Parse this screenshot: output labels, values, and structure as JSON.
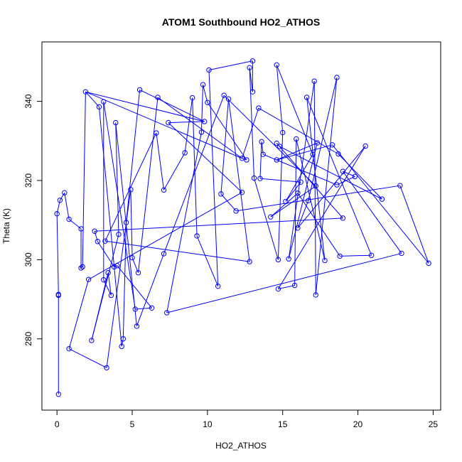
{
  "chart_data": {
    "type": "line",
    "title": "ATOM1 Southbound HO2_ATHOS",
    "xlabel": "HO2_ATHOS",
    "ylabel": "Theta (K)",
    "xlim": [
      -1,
      25.5
    ],
    "ylim": [
      262,
      355
    ],
    "xticks": [
      0,
      5,
      10,
      15,
      20,
      25
    ],
    "yticks": [
      280,
      300,
      320,
      340
    ],
    "grid": false,
    "legend": "none",
    "series_color": "#0000ff",
    "points": [
      [
        0.0,
        311.6
      ],
      [
        0.1,
        291.2
      ],
      [
        0.1,
        266.0
      ],
      [
        0.1,
        291.0
      ],
      [
        0.2,
        315.0
      ],
      [
        0.5,
        316.9
      ],
      [
        0.8,
        310.2
      ],
      [
        0.8,
        277.5
      ],
      [
        1.6,
        307.8
      ],
      [
        1.6,
        297.9
      ],
      [
        1.7,
        298.2
      ],
      [
        1.9,
        342.4
      ],
      [
        2.1,
        295.0
      ],
      [
        2.3,
        279.6
      ],
      [
        2.5,
        307.2
      ],
      [
        2.7,
        304.6
      ],
      [
        2.8,
        338.6
      ],
      [
        3.1,
        294.9
      ],
      [
        3.1,
        339.9
      ],
      [
        3.2,
        304.7
      ],
      [
        3.3,
        272.7
      ],
      [
        3.4,
        296.7
      ],
      [
        3.6,
        291.0
      ],
      [
        3.8,
        298.2
      ],
      [
        3.9,
        334.6
      ],
      [
        4.0,
        298.5
      ],
      [
        4.1,
        306.4
      ],
      [
        4.3,
        278.1
      ],
      [
        4.4,
        280.0
      ],
      [
        4.6,
        309.4
      ],
      [
        4.9,
        317.7
      ],
      [
        5.0,
        300.5
      ],
      [
        5.2,
        287.5
      ],
      [
        5.3,
        283.2
      ],
      [
        5.4,
        296.7
      ],
      [
        5.5,
        342.9
      ],
      [
        6.3,
        287.8
      ],
      [
        6.6,
        332.0
      ],
      [
        6.7,
        341.0
      ],
      [
        7.1,
        301.5
      ],
      [
        7.1,
        317.6
      ],
      [
        7.3,
        286.6
      ],
      [
        7.4,
        334.6
      ],
      [
        8.5,
        327.0
      ],
      [
        9.0,
        340.9
      ],
      [
        9.3,
        306.0
      ],
      [
        9.6,
        332.2
      ],
      [
        9.7,
        344.2
      ],
      [
        9.8,
        334.9
      ],
      [
        10.0,
        339.7
      ],
      [
        10.1,
        347.9
      ],
      [
        10.7,
        293.3
      ],
      [
        10.9,
        316.6
      ],
      [
        11.1,
        341.5
      ],
      [
        11.4,
        340.6
      ],
      [
        11.9,
        312.3
      ],
      [
        12.3,
        317.0
      ],
      [
        12.3,
        325.6
      ],
      [
        12.6,
        325.2
      ],
      [
        12.8,
        348.5
      ],
      [
        12.8,
        299.5
      ],
      [
        13.0,
        350.2
      ],
      [
        13.0,
        342.4
      ],
      [
        13.1,
        320.6
      ],
      [
        13.4,
        338.3
      ],
      [
        13.5,
        320.5
      ],
      [
        13.6,
        329.8
      ],
      [
        13.7,
        326.6
      ],
      [
        14.2,
        310.8
      ],
      [
        14.6,
        349.2
      ],
      [
        14.6,
        325.2
      ],
      [
        14.6,
        329.4
      ],
      [
        14.7,
        292.6
      ],
      [
        14.7,
        300.0
      ],
      [
        14.8,
        328.6
      ],
      [
        15.0,
        332.1
      ],
      [
        15.2,
        314.7
      ],
      [
        15.4,
        300.2
      ],
      [
        15.8,
        293.5
      ],
      [
        15.9,
        330.5
      ],
      [
        16.0,
        308.0
      ],
      [
        16.0,
        316.8
      ],
      [
        16.2,
        319.6
      ],
      [
        16.6,
        341.0
      ],
      [
        16.7,
        314.9
      ],
      [
        17.0,
        326.6
      ],
      [
        17.1,
        345.1
      ],
      [
        17.2,
        291.1
      ],
      [
        17.2,
        318.6
      ],
      [
        17.3,
        329.5
      ],
      [
        17.8,
        299.8
      ],
      [
        18.3,
        329.0
      ],
      [
        18.6,
        346.0
      ],
      [
        18.6,
        318.9
      ],
      [
        18.7,
        326.7
      ],
      [
        18.8,
        300.9
      ],
      [
        19.0,
        322.3
      ],
      [
        19.0,
        310.5
      ],
      [
        19.8,
        321.0
      ],
      [
        20.5,
        328.7
      ],
      [
        20.9,
        301.1
      ],
      [
        21.6,
        315.3
      ],
      [
        22.8,
        318.7
      ],
      [
        22.9,
        301.6
      ],
      [
        24.7,
        299.1
      ]
    ],
    "order": [
      2,
      3,
      1,
      0,
      4,
      5,
      6,
      8,
      9,
      10,
      11,
      16,
      27,
      28,
      29,
      35,
      48,
      42,
      56,
      12,
      7,
      20,
      30,
      31,
      34,
      38,
      57,
      64,
      94,
      101,
      74,
      71,
      97,
      14,
      15,
      23,
      25,
      36,
      32,
      18,
      17,
      22,
      21,
      13,
      26,
      24,
      33,
      39,
      53,
      88,
      68,
      81,
      95,
      100,
      83,
      90,
      79,
      78,
      72,
      99,
      80,
      84,
      92,
      87,
      86,
      77,
      89,
      70,
      91,
      104,
      102,
      55,
      52,
      54,
      60,
      19,
      37,
      40,
      43,
      44,
      45,
      51,
      50,
      61,
      62,
      59,
      63,
      73,
      75,
      69,
      85,
      76,
      82,
      65,
      66,
      67,
      93,
      98,
      96,
      103,
      41,
      46,
      47,
      49,
      58,
      57,
      11,
      48
    ]
  }
}
